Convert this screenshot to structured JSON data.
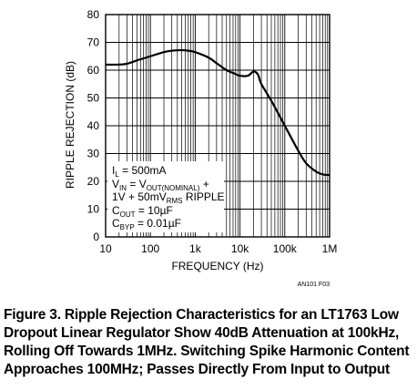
{
  "chart_data": {
    "type": "line",
    "title": "",
    "xlabel": "FREQUENCY (Hz)",
    "ylabel": "RIPPLE REJECTION (dB)",
    "x_scale": "log",
    "xlim": [
      10,
      1000000
    ],
    "ylim": [
      0,
      80
    ],
    "x_tick_labels": [
      "10",
      "100",
      "1k",
      "10k",
      "100k",
      "1M"
    ],
    "y_ticks": [
      0,
      10,
      20,
      30,
      40,
      50,
      60,
      70,
      80
    ],
    "grid": true,
    "series": [
      {
        "color": "#000000",
        "x": [
          10,
          20,
          30,
          50,
          100,
          200,
          300,
          500,
          700,
          1000,
          2000,
          3000,
          5000,
          7000,
          10000,
          15000,
          20000,
          25000,
          30000,
          50000,
          100000,
          200000,
          300000,
          500000,
          700000,
          1000000
        ],
        "y": [
          62,
          62,
          62.3,
          63.5,
          65,
          66.5,
          67,
          67.2,
          67,
          66.5,
          64.5,
          62.5,
          60,
          59,
          58,
          58,
          59.5,
          58.5,
          55,
          49,
          40,
          31,
          26.5,
          23.5,
          22.5,
          22.3
        ]
      }
    ],
    "annotations": {
      "line1_base": "I",
      "line1_sub": "L",
      "line1_rest": " = 500mA",
      "line2_base": "V",
      "line2_sub": "IN",
      "line2_mid": " = V",
      "line2_sub2": "OUT(NOMINAL)",
      "line2_rest": " +",
      "line3_base": "1V + 50mV",
      "line3_sub": "RMS",
      "line3_rest": " RIPPLE",
      "line4_base": "C",
      "line4_sub": "OUT",
      "line4_rest": " = 10µF",
      "line5_base": "C",
      "line5_sub": "BYP",
      "line5_rest": " = 0.01µF"
    },
    "figure_code": "AN101 F03"
  },
  "caption": {
    "line1": "Figure 3. Ripple Rejection Characteristics for an LT1763 Low",
    "line2": "Dropout Linear Regulator Show 40dB Attenuation at 100kHz,",
    "line3": "Rolling Off Towards 1MHz. Switching Spike Harmonic Content",
    "line4": "Approaches 100MHz; Passes Directly From Input to Output"
  }
}
